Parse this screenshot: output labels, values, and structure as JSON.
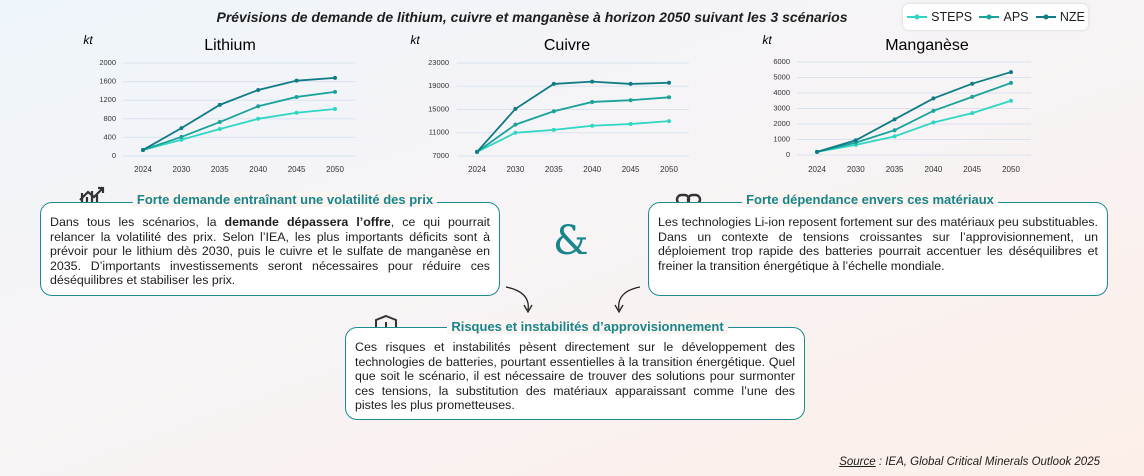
{
  "title": "Prévisions de demande de lithium, cuivre et manganèse à horizon 2050 suivant les 3 scénarios",
  "chart_data": [
    {
      "type": "line",
      "title": "Lithium",
      "y_label": "kt",
      "categories": [
        "2024",
        "2030",
        "2035",
        "2040",
        "2045",
        "2050"
      ],
      "series": [
        {
          "name": "STEPS",
          "color": "#2fd6c3",
          "values": [
            130,
            350,
            580,
            800,
            930,
            1010
          ]
        },
        {
          "name": "APS",
          "color": "#1aa39a",
          "values": [
            130,
            410,
            730,
            1070,
            1270,
            1380
          ]
        },
        {
          "name": "NZE",
          "color": "#0f7b85",
          "values": [
            130,
            600,
            1100,
            1420,
            1620,
            1680
          ]
        }
      ],
      "ylim": [
        0,
        2000
      ],
      "yticks": [
        0,
        400,
        800,
        1200,
        1600,
        2000
      ],
      "grid": true
    },
    {
      "type": "line",
      "title": "Cuivre",
      "y_label": "kt",
      "categories": [
        "2024",
        "2030",
        "2035",
        "2040",
        "2045",
        "2050"
      ],
      "series": [
        {
          "name": "STEPS",
          "color": "#2fd6c3",
          "values": [
            7700,
            11000,
            11500,
            12200,
            12500,
            13000
          ]
        },
        {
          "name": "APS",
          "color": "#1aa39a",
          "values": [
            7700,
            12400,
            14700,
            16300,
            16600,
            17100
          ]
        },
        {
          "name": "NZE",
          "color": "#0f7b85",
          "values": [
            7700,
            15100,
            19400,
            19800,
            19400,
            19600
          ]
        }
      ],
      "ylim": [
        7000,
        23000
      ],
      "yticks": [
        7000,
        11000,
        15000,
        19000,
        23000
      ],
      "grid": true
    },
    {
      "type": "line",
      "title": "Manganèse",
      "y_label": "kt",
      "categories": [
        "2024",
        "2030",
        "2035",
        "2040",
        "2045",
        "2050"
      ],
      "series": [
        {
          "name": "STEPS",
          "color": "#2fd6c3",
          "values": [
            200,
            650,
            1200,
            2100,
            2700,
            3500
          ]
        },
        {
          "name": "APS",
          "color": "#1aa39a",
          "values": [
            200,
            800,
            1600,
            2850,
            3750,
            4650
          ]
        },
        {
          "name": "NZE",
          "color": "#0f7b85",
          "values": [
            200,
            950,
            2300,
            3650,
            4600,
            5350
          ]
        }
      ],
      "ylim": [
        0,
        6000
      ],
      "yticks": [
        0,
        1000,
        2000,
        3000,
        4000,
        5000,
        6000
      ],
      "grid": true
    }
  ],
  "ampersand": "&",
  "boxes": [
    {
      "title": "Forte demande entraînant une volatilité des prix",
      "body": [
        "Dans tous les scénarios, la ",
        "demande dépassera l’offre",
        ", ce qui pourrait relancer la volatilité des prix. Selon l’IEA, les plus importants déficits sont à prévoir pour le lithium dès 2030, puis le cuivre et le sulfate de manganèse en 2035. D’importants investissements seront nécessaires pour réduire ces déséquilibres et stabiliser les prix."
      ]
    },
    {
      "title": "Forte dépendance envers ces matériaux",
      "body": [
        "Les technologies Li-ion reposent fortement sur des matériaux peu substituables. Dans un contexte de tensions croissantes sur l’approvisionnement, un déploiement trop rapide des batteries pourrait accentuer les déséquilibres et freiner la transition énergétique à l’échelle mondiale."
      ]
    },
    {
      "title": "Risques et instabilités d’approvisionnement",
      "body": [
        "Ces risques et instabilités pèsent directement sur le développement des technologies de batteries, pourtant essentielles à la transition énergétique. Quel que soit le scénario, il est nécessaire de trouver des solutions pour surmonter ces tensions, la substitution des matériaux apparaissant comme l’une des pistes les plus prometteuses."
      ]
    }
  ],
  "source": {
    "label": "Source",
    "text": ": IEA, Global Critical Minerals Outlook 2025"
  }
}
